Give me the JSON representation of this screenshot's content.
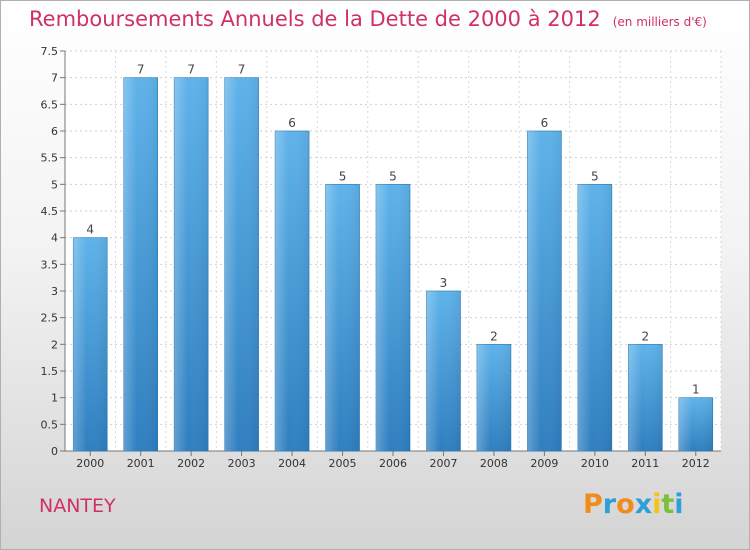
{
  "chart_data": {
    "type": "bar",
    "title": "Remboursements Annuels de la Dette de 2000 à 2012",
    "unit_note": "(en milliers d'€)",
    "categories": [
      "2000",
      "2001",
      "2002",
      "2003",
      "2004",
      "2005",
      "2006",
      "2007",
      "2008",
      "2009",
      "2010",
      "2011",
      "2012"
    ],
    "values": [
      4,
      7,
      7,
      7,
      6,
      5,
      5,
      3,
      2,
      6,
      5,
      2,
      1
    ],
    "data_labels": [
      "4",
      "7",
      "7",
      "7",
      "6",
      "5",
      "5",
      "3",
      "2",
      "6",
      "5",
      "2",
      "1"
    ],
    "y_ticks": [
      0,
      0.5,
      1,
      1.5,
      2,
      2.5,
      3,
      3.5,
      4,
      4.5,
      5,
      5.5,
      6,
      6.5,
      7,
      7.5
    ],
    "y_tick_labels": [
      "0",
      "0.5",
      "1",
      "1.5",
      "2",
      "2.5",
      "3",
      "3.5",
      "4",
      "4.5",
      "5",
      "5.5",
      "6",
      "6.5",
      "7",
      "7.5"
    ],
    "ylim": [
      0,
      7.5
    ],
    "xlabel": "",
    "ylabel": "",
    "grid": true,
    "bar_color": "#4aa0df"
  },
  "footer": {
    "place": "NANTEY",
    "logo_letters": [
      "P",
      "r",
      "o",
      "x",
      "i",
      "t",
      "i"
    ],
    "logo_colors": [
      "#f08c1c",
      "#2f9fd8",
      "#f08c1c",
      "#2f9fd8",
      "#f5c21b",
      "#7cbf3a",
      "#2f9fd8"
    ]
  }
}
